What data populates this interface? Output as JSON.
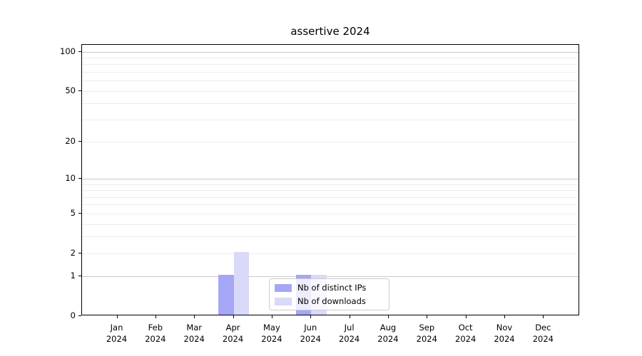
{
  "figure": {
    "background": "#ffffff"
  },
  "chart_data": {
    "type": "bar",
    "title": "assertive 2024",
    "categories": [
      "Jan 2024",
      "Feb 2024",
      "Mar 2024",
      "Apr 2024",
      "May 2024",
      "Jun 2024",
      "Jul 2024",
      "Aug 2024",
      "Sep 2024",
      "Oct 2024",
      "Nov 2024",
      "Dec 2024"
    ],
    "x_tick_labels_line1": [
      "Jan",
      "Feb",
      "Mar",
      "Apr",
      "May",
      "Jun",
      "Jul",
      "Aug",
      "Sep",
      "Oct",
      "Nov",
      "Dec"
    ],
    "x_tick_labels_line2": [
      "2024",
      "2024",
      "2024",
      "2024",
      "2024",
      "2024",
      "2024",
      "2024",
      "2024",
      "2024",
      "2024",
      "2024"
    ],
    "series": [
      {
        "name": "Nb of distinct IPs",
        "color": "#a6a6f7",
        "values": [
          0,
          0,
          0,
          1,
          0,
          1,
          0,
          0,
          0,
          0,
          0,
          0
        ]
      },
      {
        "name": "Nb of downloads",
        "color": "#d9d9f9",
        "values": [
          0,
          0,
          0,
          2,
          0,
          1,
          0,
          0,
          0,
          0,
          0,
          0
        ]
      }
    ],
    "xlabel": "",
    "ylabel": "",
    "y_scale": "log10(1+v)",
    "y_ticks": [
      0,
      1,
      2,
      5,
      10,
      20,
      50,
      100
    ],
    "y_major_gridlines": [
      1,
      10,
      100
    ],
    "y_minor_gridlines": [
      2,
      3,
      4,
      5,
      6,
      7,
      8,
      9,
      20,
      30,
      40,
      50,
      60,
      70,
      80,
      90
    ],
    "ylim": [
      0,
      113
    ],
    "grid": "horizontal",
    "legend": {
      "position": "lower center",
      "entries": [
        "Nb of distinct IPs",
        "Nb of downloads"
      ]
    },
    "colors": {
      "grid_major": "#c9c9c9",
      "grid_minor": "#ededed",
      "axis_line": "#000000",
      "text": "#000000",
      "legend_border": "#cccccc"
    }
  }
}
